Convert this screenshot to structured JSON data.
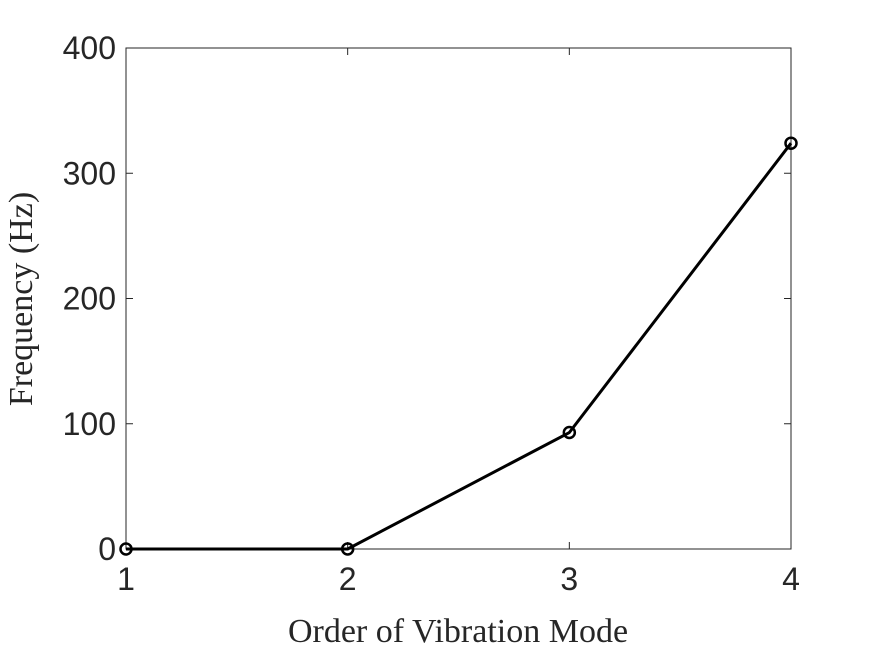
{
  "chart_data": {
    "type": "line",
    "xlabel": "Order of Vibration Mode",
    "ylabel": "Frequency (Hz)",
    "xlim": [
      1,
      4
    ],
    "ylim": [
      0,
      400
    ],
    "xticks": [
      1,
      2,
      3,
      4
    ],
    "yticks": [
      0,
      100,
      200,
      300,
      400
    ],
    "grid": false,
    "series": [
      {
        "x": [
          1,
          2,
          3,
          4
        ],
        "y": [
          0,
          0,
          93,
          324
        ],
        "color": "#000000",
        "marker": "circle"
      }
    ]
  }
}
